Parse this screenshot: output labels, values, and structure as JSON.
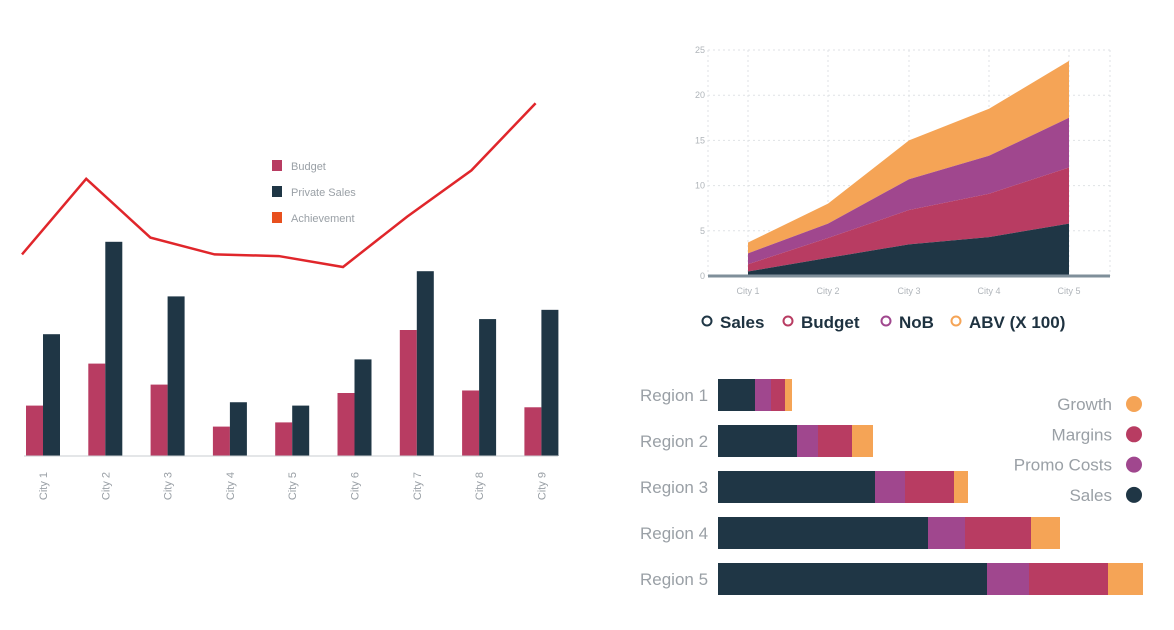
{
  "chart_data": [
    {
      "type": "bar",
      "categories": [
        "City 1",
        "City 2",
        "City 3",
        "City 4",
        "City 5",
        "City 6",
        "City 7",
        "City 8",
        "City 9"
      ],
      "series": [
        {
          "name": "Budget",
          "color": "#b83c62",
          "values": [
            6,
            11,
            8.5,
            3.5,
            4,
            7.5,
            15,
            7.8,
            5.8
          ]
        },
        {
          "name": "Private Sales",
          "color": "#1f3645",
          "values": [
            14.5,
            25.5,
            19,
            6.4,
            6,
            11.5,
            22,
            16.3,
            17.4
          ]
        }
      ],
      "line": {
        "name": "Achievement",
        "color": "#e0262b",
        "legend_color": "#e8501e",
        "values": [
          24,
          33,
          26,
          24,
          23.8,
          22.5,
          28.5,
          34,
          42
        ]
      },
      "legend": [
        "Budget",
        "Private Sales",
        "Achievement"
      ],
      "legend_position": "top-right",
      "ylim": [
        0,
        50
      ]
    },
    {
      "type": "area",
      "stacked": true,
      "x": [
        "City 1",
        "City 2",
        "City 3",
        "City 4",
        "City 5"
      ],
      "series": [
        {
          "name": "Sales",
          "color": "#1f3645",
          "values": [
            0.5,
            2,
            3.5,
            4.3,
            5.8
          ]
        },
        {
          "name": "Budget",
          "color": "#b83c62",
          "values": [
            0.8,
            2.2,
            3.8,
            4.8,
            6.2
          ]
        },
        {
          "name": "NoB",
          "color": "#a0478e",
          "values": [
            1.2,
            1.6,
            3.4,
            4.2,
            5.5
          ]
        },
        {
          "name": "ABV (X 100)",
          "color": "#f5a456",
          "values": [
            1.2,
            2.2,
            4.3,
            5.2,
            6.3
          ]
        }
      ],
      "yticks": [
        "0",
        "5",
        "10",
        "15",
        "20",
        "25"
      ],
      "ylim": [
        0,
        25
      ],
      "grid": true,
      "legend_position": "bottom"
    },
    {
      "type": "bar",
      "orientation": "horizontal",
      "stacked": true,
      "categories": [
        "Region 1",
        "Region 2",
        "Region 3",
        "Region 4",
        "Region 5"
      ],
      "series": [
        {
          "name": "Sales",
          "color": "#1f3645",
          "values": [
            37,
            79,
            157,
            210,
            269
          ]
        },
        {
          "name": "Promo Costs",
          "color": "#a0478e",
          "values": [
            16,
            21,
            30,
            37,
            42
          ]
        },
        {
          "name": "Margins",
          "color": "#b83c62",
          "values": [
            14,
            34,
            49,
            66,
            79
          ]
        },
        {
          "name": "Growth",
          "color": "#f5a456",
          "values": [
            7,
            21,
            14,
            29,
            35
          ]
        }
      ],
      "legend": [
        "Growth",
        "Margins",
        "Promo Costs",
        "Sales"
      ],
      "legend_position": "right"
    }
  ]
}
